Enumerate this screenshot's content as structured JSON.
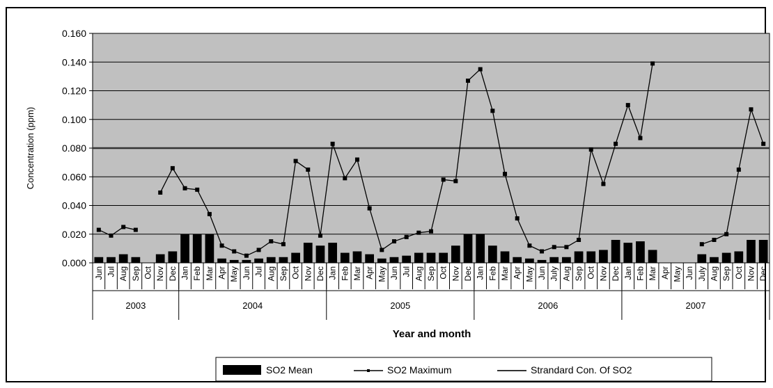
{
  "chart_data": {
    "type": "bar+line",
    "ylabel": "Concentration (ppm)",
    "xlabel": "Year and month",
    "ylim": [
      0,
      0.16
    ],
    "yticks": [
      "0.000",
      "0.020",
      "0.040",
      "0.060",
      "0.080",
      "0.100",
      "0.120",
      "0.140",
      "0.160"
    ],
    "grid": true,
    "legend_position": "bottom",
    "categories": [
      "Jun",
      "Jul",
      "Aug",
      "Sep",
      "Oct",
      "Nov",
      "Dec",
      "Jan",
      "Feb",
      "Mar",
      "Apr",
      "May",
      "Jun",
      "Jul",
      "Aug",
      "Sep",
      "Oct",
      "Nov",
      "Dec",
      "Jan",
      "Feb",
      "Mar",
      "Apr",
      "May",
      "Jun",
      "Jul",
      "Aug",
      "Sep",
      "Oct",
      "Nov",
      "Dec",
      "Jan",
      "Feb",
      "Mar",
      "Apr",
      "May",
      "Jun",
      "July",
      "Aug",
      "Sep",
      "Oct",
      "Nov",
      "Dec",
      "Jan",
      "Feb",
      "Mar",
      "Apr",
      "May",
      "Jun",
      "July",
      "Aug",
      "Sep",
      "Oct",
      "Nov",
      "Dec"
    ],
    "years": [
      {
        "label": "2003",
        "count": 7
      },
      {
        "label": "2004",
        "count": 12
      },
      {
        "label": "2005",
        "count": 12
      },
      {
        "label": "2006",
        "count": 12
      },
      {
        "label": "2007",
        "count": 12
      }
    ],
    "series": [
      {
        "name": "SO2 Mean",
        "kind": "bar",
        "color": "#000000",
        "values": [
          0.004,
          0.004,
          0.006,
          0.004,
          null,
          0.006,
          0.008,
          0.02,
          0.02,
          0.02,
          0.003,
          0.002,
          0.002,
          0.003,
          0.004,
          0.004,
          0.007,
          0.014,
          0.012,
          0.014,
          0.007,
          0.008,
          0.006,
          0.003,
          0.004,
          0.005,
          0.007,
          0.007,
          0.007,
          0.012,
          0.02,
          0.02,
          0.012,
          0.008,
          0.004,
          0.003,
          0.002,
          0.004,
          0.004,
          0.008,
          0.008,
          0.009,
          0.016,
          0.014,
          0.015,
          0.009,
          null,
          null,
          null,
          0.006,
          0.004,
          0.007,
          0.008,
          0.016,
          0.016
        ]
      },
      {
        "name": "SO2 Maximum",
        "kind": "line",
        "color": "#000000",
        "values": [
          0.023,
          0.019,
          0.025,
          0.023,
          null,
          0.049,
          0.066,
          0.052,
          0.051,
          0.034,
          0.012,
          0.008,
          0.005,
          0.009,
          0.015,
          0.013,
          0.071,
          0.065,
          0.019,
          0.083,
          0.059,
          0.072,
          0.038,
          0.009,
          0.015,
          0.018,
          0.021,
          0.022,
          0.058,
          0.057,
          0.127,
          0.135,
          0.106,
          0.062,
          0.031,
          0.012,
          0.008,
          0.011,
          0.011,
          0.016,
          0.079,
          0.055,
          0.083,
          0.11,
          0.087,
          0.139,
          null,
          null,
          null,
          0.013,
          0.016,
          0.02,
          0.065,
          0.107,
          0.083
        ]
      },
      {
        "name": "Strandard Con. Of SO2",
        "kind": "line",
        "color": "#333333",
        "values_constant": 0.08
      }
    ]
  }
}
